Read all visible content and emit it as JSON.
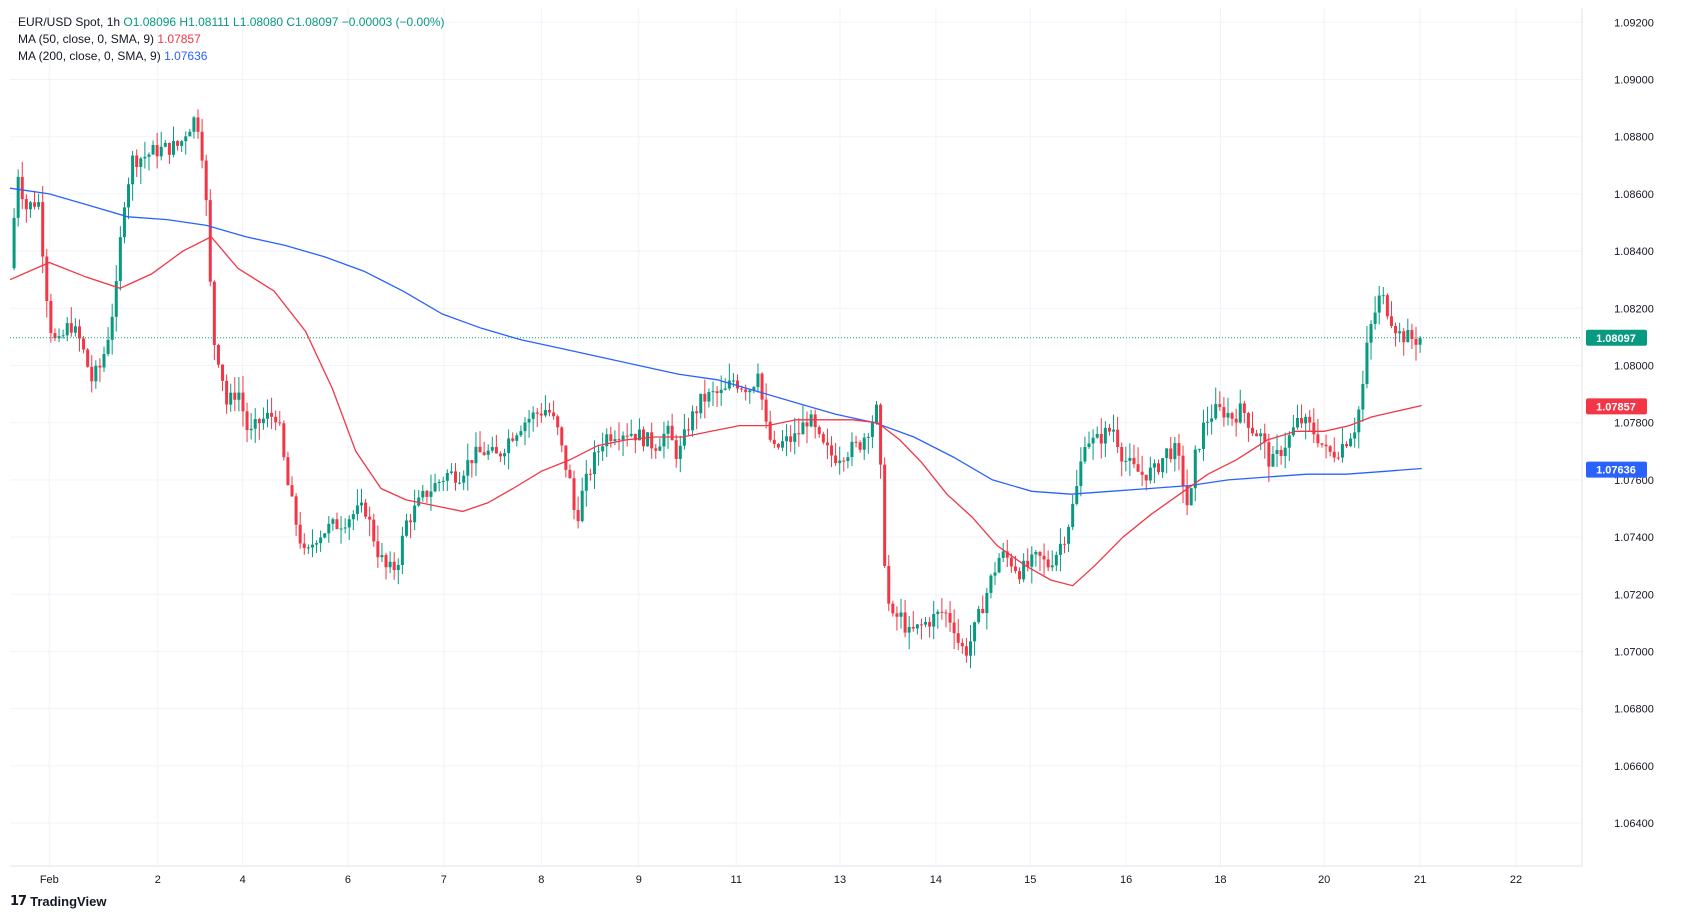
{
  "legend": {
    "symbol": "EUR/USD Spot, 1h",
    "ohlc": "O1.08096 H1.08111 L1.08080 C1.08097 −0.00003 (−0.00%)",
    "ma50_label": "MA (50, close, 0, SMA, 9)",
    "ma50_value": "1.07857",
    "ma200_label": "MA (200, close, 0, SMA, 9)",
    "ma200_value": "1.07636"
  },
  "brand": {
    "logo": "𝟭𝟳",
    "name": "TradingView"
  },
  "colors": {
    "up": "#089981",
    "down": "#f23645",
    "ma50": "#f23645",
    "ma200": "#2962ff",
    "last_price": "#089981",
    "grid": "#f0f3fa",
    "axis_text": "#131722"
  },
  "chart_data": {
    "type": "line",
    "title": "EUR/USD Spot, 1h",
    "ylim": [
      1.0625,
      1.0925
    ],
    "y_ticks": [
      "1.09200",
      "1.09000",
      "1.08800",
      "1.08600",
      "1.08400",
      "1.08200",
      "1.08000",
      "1.07800",
      "1.07600",
      "1.07400",
      "1.07200",
      "1.07000",
      "1.06800",
      "1.06600",
      "1.06400"
    ],
    "x_ticks": [
      "Feb",
      "2",
      "4",
      "6",
      "7",
      "8",
      "9",
      "11",
      "13",
      "14",
      "15",
      "16",
      "18",
      "20",
      "21",
      "22"
    ],
    "x_tick_positions": [
      0.025,
      0.094,
      0.148,
      0.215,
      0.276,
      0.338,
      0.4,
      0.462,
      0.528,
      0.589,
      0.649,
      0.71,
      0.77,
      0.836,
      0.897,
      0.958
    ],
    "price_path": [
      [
        0.0,
        1.0834
      ],
      [
        0.005,
        1.0868
      ],
      [
        0.01,
        1.0855
      ],
      [
        0.018,
        1.0858
      ],
      [
        0.025,
        1.0815
      ],
      [
        0.03,
        1.0806
      ],
      [
        0.038,
        1.0815
      ],
      [
        0.045,
        1.0808
      ],
      [
        0.052,
        1.0795
      ],
      [
        0.058,
        1.08
      ],
      [
        0.063,
        1.0812
      ],
      [
        0.068,
        1.0828
      ],
      [
        0.072,
        1.0856
      ],
      [
        0.078,
        1.0872
      ],
      [
        0.085,
        1.0873
      ],
      [
        0.092,
        1.0875
      ],
      [
        0.1,
        1.0876
      ],
      [
        0.108,
        1.0877
      ],
      [
        0.112,
        1.0882
      ],
      [
        0.117,
        1.0886
      ],
      [
        0.121,
        1.0883
      ],
      [
        0.125,
        1.0855
      ],
      [
        0.129,
        1.081
      ],
      [
        0.134,
        1.08
      ],
      [
        0.138,
        1.0786
      ],
      [
        0.145,
        1.0792
      ],
      [
        0.152,
        1.0775
      ],
      [
        0.158,
        1.078
      ],
      [
        0.164,
        1.0782
      ],
      [
        0.17,
        1.0783
      ],
      [
        0.176,
        1.076
      ],
      [
        0.182,
        1.0745
      ],
      [
        0.188,
        1.0732
      ],
      [
        0.194,
        1.074
      ],
      [
        0.202,
        1.0743
      ],
      [
        0.21,
        1.0745
      ],
      [
        0.218,
        1.0748
      ],
      [
        0.226,
        1.075
      ],
      [
        0.234,
        1.0735
      ],
      [
        0.24,
        1.0728
      ],
      [
        0.246,
        1.073
      ],
      [
        0.252,
        1.0745
      ],
      [
        0.258,
        1.075
      ],
      [
        0.264,
        1.0755
      ],
      [
        0.27,
        1.0758
      ],
      [
        0.278,
        1.0762
      ],
      [
        0.286,
        1.0762
      ],
      [
        0.294,
        1.0768
      ],
      [
        0.302,
        1.077
      ],
      [
        0.31,
        1.0768
      ],
      [
        0.318,
        1.0775
      ],
      [
        0.326,
        1.078
      ],
      [
        0.334,
        1.0783
      ],
      [
        0.342,
        1.0785
      ],
      [
        0.348,
        1.0778
      ],
      [
        0.352,
        1.0768
      ],
      [
        0.356,
        1.076
      ],
      [
        0.36,
        1.0745
      ],
      [
        0.364,
        1.0755
      ],
      [
        0.37,
        1.0765
      ],
      [
        0.378,
        1.0775
      ],
      [
        0.386,
        1.0777
      ],
      [
        0.394,
        1.0777
      ],
      [
        0.402,
        1.0775
      ],
      [
        0.41,
        1.0772
      ],
      [
        0.418,
        1.0777
      ],
      [
        0.425,
        1.0768
      ],
      [
        0.432,
        1.078
      ],
      [
        0.44,
        1.0788
      ],
      [
        0.448,
        1.079
      ],
      [
        0.454,
        1.079
      ],
      [
        0.46,
        1.0795
      ],
      [
        0.466,
        1.0793
      ],
      [
        0.472,
        1.0792
      ],
      [
        0.476,
        1.08
      ],
      [
        0.48,
        1.078
      ],
      [
        0.486,
        1.077
      ],
      [
        0.492,
        1.0773
      ],
      [
        0.5,
        1.0775
      ],
      [
        0.508,
        1.0782
      ],
      [
        0.516,
        1.0772
      ],
      [
        0.524,
        1.0768
      ],
      [
        0.532,
        1.077
      ],
      [
        0.54,
        1.0772
      ],
      [
        0.546,
        1.0778
      ],
      [
        0.552,
        1.0785
      ],
      [
        0.556,
        1.0735
      ],
      [
        0.56,
        1.071
      ],
      [
        0.566,
        1.0713
      ],
      [
        0.572,
        1.0706
      ],
      [
        0.58,
        1.0709
      ],
      [
        0.588,
        1.0712
      ],
      [
        0.594,
        1.0714
      ],
      [
        0.6,
        1.071
      ],
      [
        0.604,
        1.0702
      ],
      [
        0.608,
        1.07
      ],
      [
        0.612,
        1.0705
      ],
      [
        0.618,
        1.0715
      ],
      [
        0.624,
        1.0725
      ],
      [
        0.63,
        1.0734
      ],
      [
        0.636,
        1.0732
      ],
      [
        0.642,
        1.0728
      ],
      [
        0.648,
        1.073
      ],
      [
        0.654,
        1.0733
      ],
      [
        0.66,
        1.073
      ],
      [
        0.666,
        1.0735
      ],
      [
        0.672,
        1.0742
      ],
      [
        0.678,
        1.0755
      ],
      [
        0.684,
        1.0775
      ],
      [
        0.69,
        1.0773
      ],
      [
        0.696,
        1.0776
      ],
      [
        0.702,
        1.0778
      ],
      [
        0.708,
        1.0768
      ],
      [
        0.714,
        1.0764
      ],
      [
        0.72,
        1.0762
      ],
      [
        0.728,
        1.0763
      ],
      [
        0.736,
        1.077
      ],
      [
        0.742,
        1.077
      ],
      [
        0.746,
        1.076
      ],
      [
        0.75,
        1.0748
      ],
      [
        0.754,
        1.0768
      ],
      [
        0.76,
        1.078
      ],
      [
        0.766,
        1.0784
      ],
      [
        0.772,
        1.0784
      ],
      [
        0.778,
        1.0782
      ],
      [
        0.784,
        1.0785
      ],
      [
        0.79,
        1.0778
      ],
      [
        0.796,
        1.0775
      ],
      [
        0.802,
        1.0765
      ],
      [
        0.808,
        1.077
      ],
      [
        0.814,
        1.0775
      ],
      [
        0.82,
        1.0781
      ],
      [
        0.826,
        1.0779
      ],
      [
        0.832,
        1.0775
      ],
      [
        0.838,
        1.0769
      ],
      [
        0.844,
        1.077
      ],
      [
        0.85,
        1.0774
      ],
      [
        0.856,
        1.0779
      ],
      [
        0.86,
        1.079
      ],
      [
        0.864,
        1.081
      ],
      [
        0.868,
        1.0818
      ],
      [
        0.872,
        1.0825
      ],
      [
        0.876,
        1.082
      ],
      [
        0.88,
        1.0815
      ],
      [
        0.884,
        1.0811
      ],
      [
        0.888,
        1.081
      ],
      [
        0.894,
        1.0809
      ],
      [
        0.898,
        1.081
      ]
    ],
    "ma50_path": [
      [
        0.0,
        1.083
      ],
      [
        0.025,
        1.0836
      ],
      [
        0.048,
        1.0831
      ],
      [
        0.07,
        1.0827
      ],
      [
        0.09,
        1.0832
      ],
      [
        0.11,
        1.084
      ],
      [
        0.128,
        1.0845
      ],
      [
        0.145,
        1.0834
      ],
      [
        0.168,
        1.0826
      ],
      [
        0.188,
        1.0812
      ],
      [
        0.205,
        1.0792
      ],
      [
        0.22,
        1.077
      ],
      [
        0.236,
        1.0757
      ],
      [
        0.252,
        1.0753
      ],
      [
        0.27,
        1.0751
      ],
      [
        0.288,
        1.0749
      ],
      [
        0.304,
        1.0752
      ],
      [
        0.32,
        1.0757
      ],
      [
        0.338,
        1.0763
      ],
      [
        0.356,
        1.0767
      ],
      [
        0.374,
        1.0772
      ],
      [
        0.392,
        1.0774
      ],
      [
        0.41,
        1.0775
      ],
      [
        0.428,
        1.0775
      ],
      [
        0.446,
        1.0777
      ],
      [
        0.464,
        1.0779
      ],
      [
        0.482,
        1.0779
      ],
      [
        0.5,
        1.0781
      ],
      [
        0.518,
        1.0781
      ],
      [
        0.536,
        1.0781
      ],
      [
        0.552,
        1.078
      ],
      [
        0.566,
        1.0774
      ],
      [
        0.58,
        1.0766
      ],
      [
        0.596,
        1.0755
      ],
      [
        0.612,
        1.0747
      ],
      [
        0.628,
        1.0737
      ],
      [
        0.646,
        1.073
      ],
      [
        0.662,
        1.0725
      ],
      [
        0.676,
        1.0723
      ],
      [
        0.69,
        1.073
      ],
      [
        0.708,
        1.074
      ],
      [
        0.726,
        1.0748
      ],
      [
        0.744,
        1.0755
      ],
      [
        0.762,
        1.0762
      ],
      [
        0.78,
        1.0767
      ],
      [
        0.8,
        1.0774
      ],
      [
        0.818,
        1.0777
      ],
      [
        0.836,
        1.0777
      ],
      [
        0.852,
        1.0779
      ],
      [
        0.866,
        1.0782
      ],
      [
        0.882,
        1.0784
      ],
      [
        0.898,
        1.0786
      ]
    ],
    "ma200_path": [
      [
        0.0,
        1.0862
      ],
      [
        0.025,
        1.086
      ],
      [
        0.05,
        1.0856
      ],
      [
        0.075,
        1.0852
      ],
      [
        0.1,
        1.0851
      ],
      [
        0.125,
        1.0849
      ],
      [
        0.15,
        1.0845
      ],
      [
        0.175,
        1.0842
      ],
      [
        0.2,
        1.0838
      ],
      [
        0.225,
        1.0833
      ],
      [
        0.25,
        1.0826
      ],
      [
        0.275,
        1.0818
      ],
      [
        0.3,
        1.0813
      ],
      [
        0.325,
        1.0809
      ],
      [
        0.35,
        1.0806
      ],
      [
        0.375,
        1.0803
      ],
      [
        0.4,
        1.08
      ],
      [
        0.425,
        1.0797
      ],
      [
        0.45,
        1.0795
      ],
      [
        0.475,
        1.0791
      ],
      [
        0.5,
        1.0787
      ],
      [
        0.525,
        1.0783
      ],
      [
        0.55,
        1.078
      ],
      [
        0.575,
        1.0775
      ],
      [
        0.6,
        1.0768
      ],
      [
        0.625,
        1.076
      ],
      [
        0.65,
        1.0756
      ],
      [
        0.675,
        1.0755
      ],
      [
        0.7,
        1.0756
      ],
      [
        0.725,
        1.0757
      ],
      [
        0.75,
        1.0758
      ],
      [
        0.775,
        1.076
      ],
      [
        0.8,
        1.0761
      ],
      [
        0.825,
        1.0762
      ],
      [
        0.85,
        1.0762
      ],
      [
        0.875,
        1.0763
      ],
      [
        0.898,
        1.0764
      ]
    ],
    "last_price": 1.08097,
    "ma50_last": 1.07857,
    "ma200_last": 1.07636,
    "last_price_label": "1.08097",
    "ma50_label": "1.07857",
    "ma200_label": "1.07636"
  }
}
